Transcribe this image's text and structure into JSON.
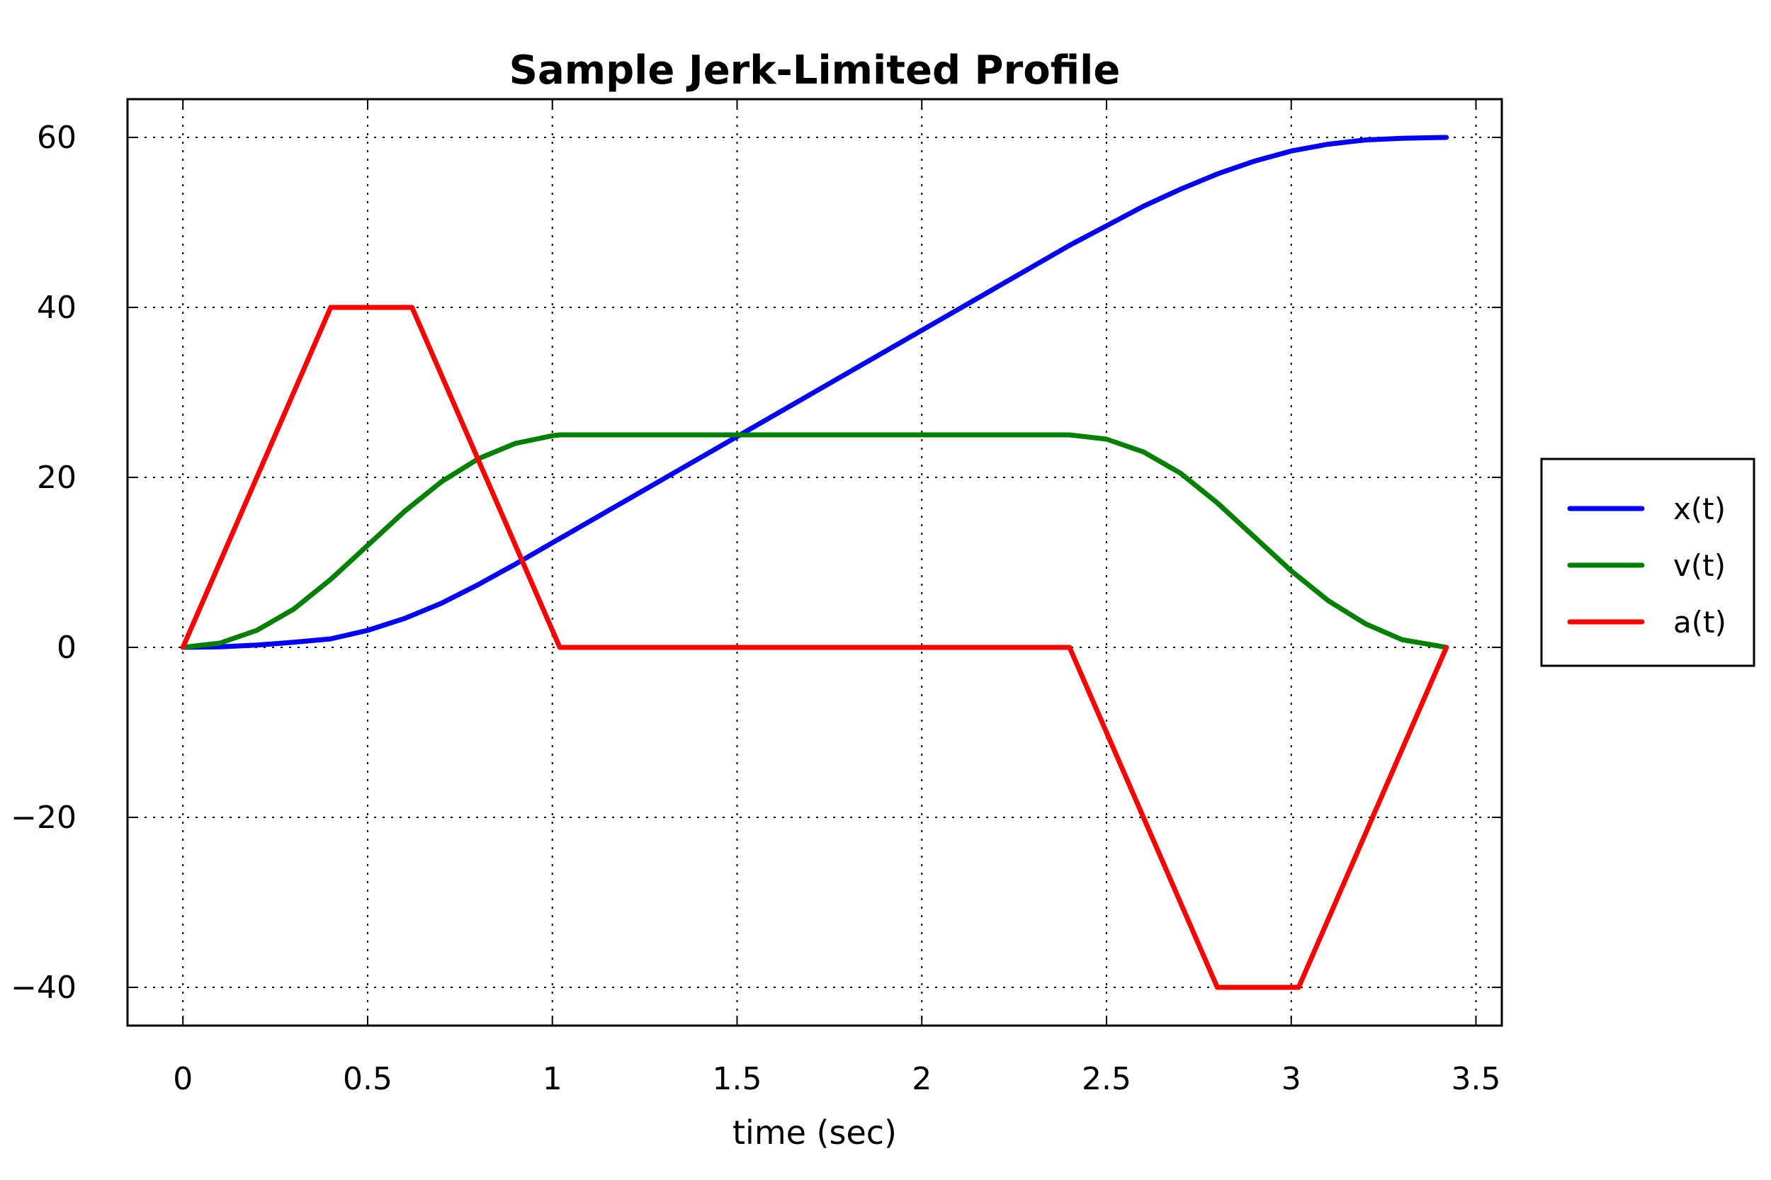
{
  "chart_data": {
    "type": "line",
    "title": "Sample Jerk-Limited Profile",
    "xlabel": "time (sec)",
    "ylabel": "",
    "xlim": [
      -0.15,
      3.57
    ],
    "ylim": [
      -44.5,
      64.5
    ],
    "xticks": [
      0,
      0.5,
      1,
      1.5,
      2,
      2.5,
      3,
      3.5
    ],
    "xtick_labels": [
      "0",
      "0.5",
      "1",
      "1.5",
      "2",
      "2.5",
      "3",
      "3.5"
    ],
    "yticks": [
      -40,
      -20,
      0,
      20,
      40,
      60
    ],
    "ytick_labels": [
      "−40",
      "−20",
      "0",
      "20",
      "40",
      "60"
    ],
    "grid": true,
    "legend_position": "right",
    "series": [
      {
        "name": "x(t)",
        "color": "#0000ff",
        "x": [
          0,
          0.1,
          0.2,
          0.3,
          0.4,
          0.5,
          0.6,
          0.7,
          0.8,
          0.9,
          1.0,
          1.1,
          1.2,
          1.3,
          1.4,
          1.5,
          1.6,
          1.7,
          1.8,
          1.9,
          2.0,
          2.1,
          2.2,
          2.3,
          2.4,
          2.5,
          2.6,
          2.7,
          2.8,
          2.9,
          3.0,
          3.1,
          3.2,
          3.3,
          3.42
        ],
        "y": [
          0,
          0.07,
          0.27,
          0.6,
          1.0,
          2.0,
          3.4,
          5.2,
          7.4,
          9.8,
          12.3,
          14.8,
          17.3,
          19.8,
          22.3,
          24.8,
          27.3,
          29.8,
          32.3,
          34.8,
          37.3,
          39.8,
          42.3,
          44.8,
          47.3,
          49.6,
          51.9,
          53.9,
          55.7,
          57.2,
          58.4,
          59.2,
          59.7,
          59.9,
          60.0
        ]
      },
      {
        "name": "v(t)",
        "color": "#008000",
        "x": [
          0,
          0.1,
          0.2,
          0.3,
          0.4,
          0.5,
          0.6,
          0.7,
          0.8,
          0.9,
          1.0,
          1.02,
          1.5,
          2.0,
          2.4,
          2.5,
          2.6,
          2.7,
          2.8,
          2.9,
          3.0,
          3.1,
          3.2,
          3.3,
          3.42
        ],
        "y": [
          0,
          0.5,
          2.0,
          4.5,
          8.0,
          12.0,
          16.0,
          19.5,
          22.2,
          24.0,
          24.9,
          25.0,
          25.0,
          25.0,
          25.0,
          24.5,
          23.0,
          20.5,
          17.0,
          13.0,
          9.0,
          5.5,
          2.8,
          0.9,
          0
        ]
      },
      {
        "name": "a(t)",
        "color": "#ff0000",
        "x": [
          0,
          0.4,
          0.62,
          1.02,
          2.4,
          2.8,
          3.02,
          3.42
        ],
        "y": [
          0,
          40,
          40,
          0,
          0,
          -40,
          -40,
          0
        ]
      }
    ]
  }
}
